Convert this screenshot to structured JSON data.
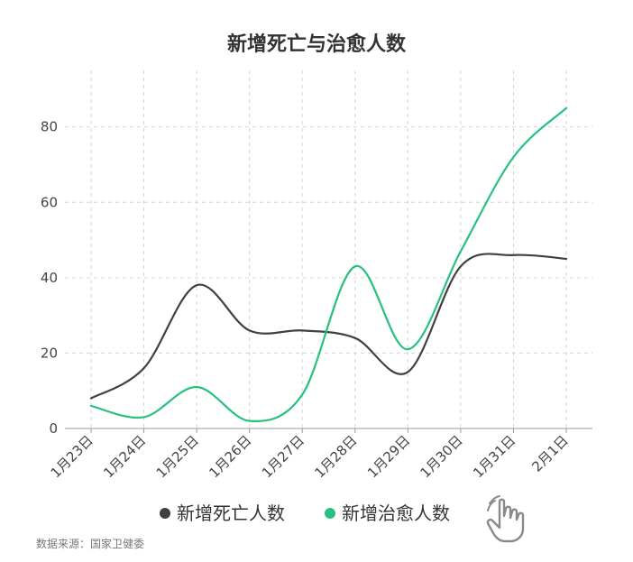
{
  "chart_data": {
    "type": "line",
    "title": "新增死亡与治愈人数",
    "categories": [
      "1月23日",
      "1月24日",
      "1月25日",
      "1月26日",
      "1月27日",
      "1月28日",
      "1月29日",
      "1月30日",
      "1月31日",
      "2月1日"
    ],
    "series": [
      {
        "name": "新增死亡人数",
        "color": "#404040",
        "values": [
          8,
          16,
          38,
          26,
          26,
          24,
          15,
          43,
          46,
          45
        ]
      },
      {
        "name": "新增治愈人数",
        "color": "#27c07d",
        "values": [
          6,
          3,
          11,
          2,
          9,
          43,
          21,
          47,
          72,
          85
        ]
      }
    ],
    "yticks": [
      0,
      20,
      40,
      60,
      80
    ],
    "ylim": [
      0,
      95
    ],
    "grid": true,
    "legend_position": "bottom",
    "source": "数据来源：国家卫健委"
  },
  "cursor": {
    "icon": "hand-pointer-icon"
  }
}
